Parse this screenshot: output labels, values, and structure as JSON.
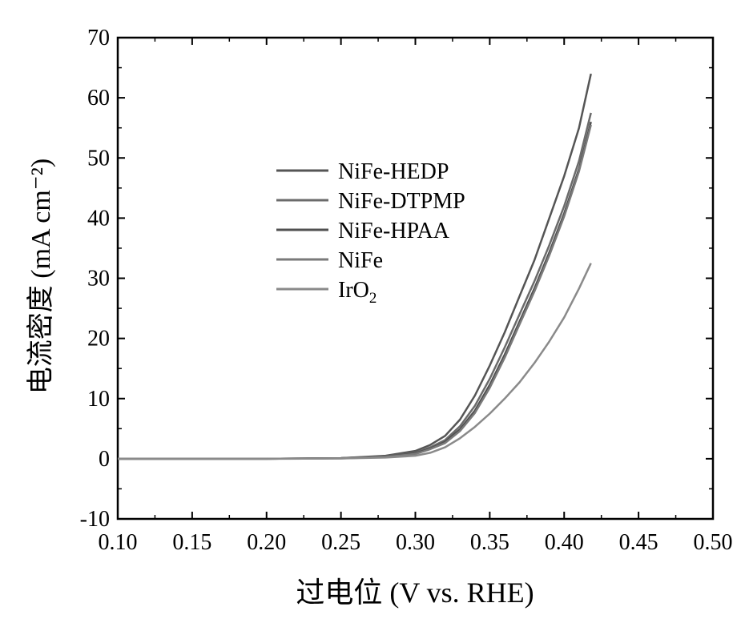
{
  "chart_data": {
    "type": "line",
    "xlabel": "过电位 (V vs. RHE)",
    "ylabel": "电流密度 (mA cm⁻²)",
    "xlim": [
      0.1,
      0.5
    ],
    "ylim": [
      -10,
      70
    ],
    "xticks": [
      "0.10",
      "0.15",
      "0.20",
      "0.25",
      "0.30",
      "0.35",
      "0.40",
      "0.45",
      "0.50"
    ],
    "yticks": [
      "-10",
      "0",
      "10",
      "20",
      "30",
      "40",
      "50",
      "60",
      "70"
    ],
    "legend_position": "upper-left",
    "series": [
      {
        "name": "NiFe-HEDP",
        "color": "#555555",
        "x": [
          0.1,
          0.2,
          0.25,
          0.28,
          0.3,
          0.31,
          0.32,
          0.33,
          0.34,
          0.35,
          0.36,
          0.37,
          0.38,
          0.39,
          0.4,
          0.41,
          0.418
        ],
        "y": [
          0,
          0,
          0.1,
          0.5,
          1.3,
          2.3,
          3.8,
          6.5,
          10.5,
          15.5,
          21,
          27,
          33,
          40,
          47,
          55,
          64
        ]
      },
      {
        "name": "NiFe-DTPMP",
        "color": "#6b6b6b",
        "x": [
          0.1,
          0.2,
          0.25,
          0.28,
          0.3,
          0.31,
          0.32,
          0.33,
          0.34,
          0.35,
          0.36,
          0.37,
          0.38,
          0.39,
          0.4,
          0.41,
          0.418
        ],
        "y": [
          0,
          0,
          0.1,
          0.4,
          1.0,
          1.9,
          3.1,
          5.4,
          8.8,
          13.3,
          18.5,
          24,
          29.5,
          35.5,
          42,
          49.5,
          57.5
        ]
      },
      {
        "name": "NiFe-HPAA",
        "color": "#505050",
        "x": [
          0.1,
          0.2,
          0.25,
          0.28,
          0.3,
          0.31,
          0.32,
          0.33,
          0.34,
          0.35,
          0.36,
          0.37,
          0.38,
          0.39,
          0.4,
          0.41,
          0.418
        ],
        "y": [
          0,
          0,
          0.1,
          0.35,
          0.9,
          1.7,
          2.8,
          4.9,
          8.0,
          12.3,
          17.3,
          22.8,
          28.3,
          34.3,
          40.8,
          48.2,
          56.0
        ]
      },
      {
        "name": "NiFe",
        "color": "#7a7a7a",
        "x": [
          0.1,
          0.2,
          0.25,
          0.28,
          0.3,
          0.31,
          0.32,
          0.33,
          0.34,
          0.35,
          0.36,
          0.37,
          0.38,
          0.39,
          0.4,
          0.41,
          0.418
        ],
        "y": [
          0,
          0,
          0.05,
          0.3,
          0.8,
          1.6,
          2.6,
          4.6,
          7.6,
          11.8,
          16.8,
          22.3,
          27.8,
          33.8,
          40.3,
          47.8,
          55.5
        ]
      },
      {
        "name": "IrO2",
        "legend_main": "IrO",
        "legend_sub": "2",
        "color": "#8a8a8a",
        "x": [
          0.1,
          0.2,
          0.25,
          0.28,
          0.3,
          0.31,
          0.32,
          0.33,
          0.34,
          0.35,
          0.36,
          0.37,
          0.38,
          0.39,
          0.4,
          0.41,
          0.418
        ],
        "y": [
          0,
          0,
          0.05,
          0.2,
          0.5,
          1.0,
          1.9,
          3.4,
          5.3,
          7.5,
          10.0,
          12.7,
          15.9,
          19.5,
          23.5,
          28.3,
          32.5
        ]
      }
    ]
  }
}
